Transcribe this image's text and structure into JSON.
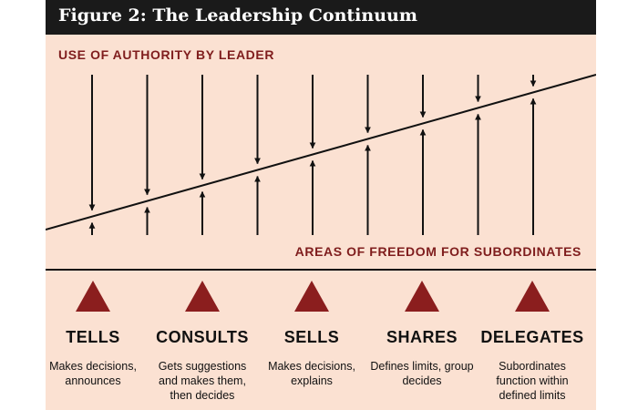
{
  "figure": {
    "title": "Figure 2: The Leadership Continuum",
    "top_label": "USE OF AUTHORITY BY LEADER",
    "bottom_label": "AREAS OF FREEDOM FOR SUBORDINATES"
  },
  "continuum": {
    "arrow_pairs": 9,
    "direction": "authority decreases left to right; freedom increases left to right"
  },
  "styles": [
    {
      "name": "TELLS",
      "description": "Makes decisions, announces"
    },
    {
      "name": "CONSULTS",
      "description": "Gets suggestions and makes them, then decides"
    },
    {
      "name": "SELLS",
      "description": "Makes decisions, explains"
    },
    {
      "name": "SHARES",
      "description": "Defines limits, group decides"
    },
    {
      "name": "DELEGATES",
      "description": "Subordinates function within defined limits"
    }
  ],
  "colors": {
    "background": "#fbe1d2",
    "title_bar": "#1a1a1a",
    "accent": "#7f1d1d",
    "triangle": "#8b1e1e",
    "text": "#111111"
  },
  "icons": {
    "style_marker": "triangle-icon"
  }
}
